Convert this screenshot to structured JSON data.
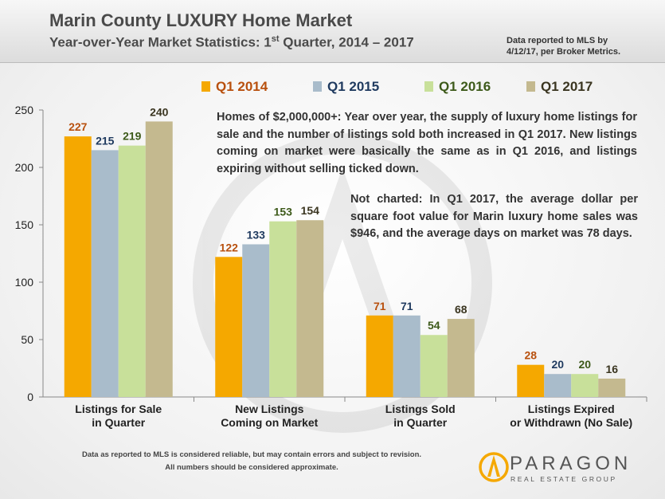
{
  "header": {
    "title": "Marin County LUXURY Home Market",
    "subtitle_main": "Year-over-Year Market Statistics: 1",
    "subtitle_sup": "st",
    "subtitle_rest": " Quarter, 2014 – 2017",
    "note_line1": "Data reported to MLS by",
    "note_line2": "4/12/17, per Broker Metrics."
  },
  "commentary": {
    "paragraph1": "Homes of $2,000,000+: Year over year, the supply of luxury home listings for sale and the number of listings sold both increased in Q1 2017. New listings coming on market were basically the same as in Q1 2016, and listings expiring without selling ticked down.",
    "paragraph2": "Not charted: In Q1 2017, the average dollar per square foot value for Marin luxury home sales was $946, and the average days on market was 78 days."
  },
  "footer": {
    "disclaimer_line1": "Data as reported  to MLS is considered reliable, but may contain errors and subject to revision.",
    "disclaimer_line2": "All numbers should be considered approximate.",
    "logo_name": "PARAGON",
    "logo_tagline": "REAL ESTATE GROUP"
  },
  "chart_data": {
    "type": "bar",
    "categories": [
      [
        "Listings for Sale",
        "in Quarter"
      ],
      [
        "New Listings",
        "Coming on Market"
      ],
      [
        "Listings Sold",
        "in Quarter"
      ],
      [
        "Listings Expired",
        "or Withdrawn (No Sale)"
      ]
    ],
    "series": [
      {
        "name": "Q1 2014",
        "values": [
          227,
          122,
          71,
          28
        ],
        "color": "#f5a800",
        "label_color": "#b8500e"
      },
      {
        "name": "Q1 2015",
        "values": [
          215,
          133,
          71,
          20
        ],
        "color": "#a9bccb",
        "label_color": "#1f3a5f"
      },
      {
        "name": "Q1 2016",
        "values": [
          219,
          153,
          54,
          20
        ],
        "color": "#c8e09a",
        "label_color": "#3d5a1a"
      },
      {
        "name": "Q1 2017",
        "values": [
          240,
          154,
          68,
          16
        ],
        "color": "#c4b98f",
        "label_color": "#3a3520"
      }
    ],
    "yticks": [
      0,
      50,
      100,
      150,
      200,
      250
    ],
    "ylim": [
      0,
      250
    ],
    "grid": false,
    "legend": "top"
  }
}
